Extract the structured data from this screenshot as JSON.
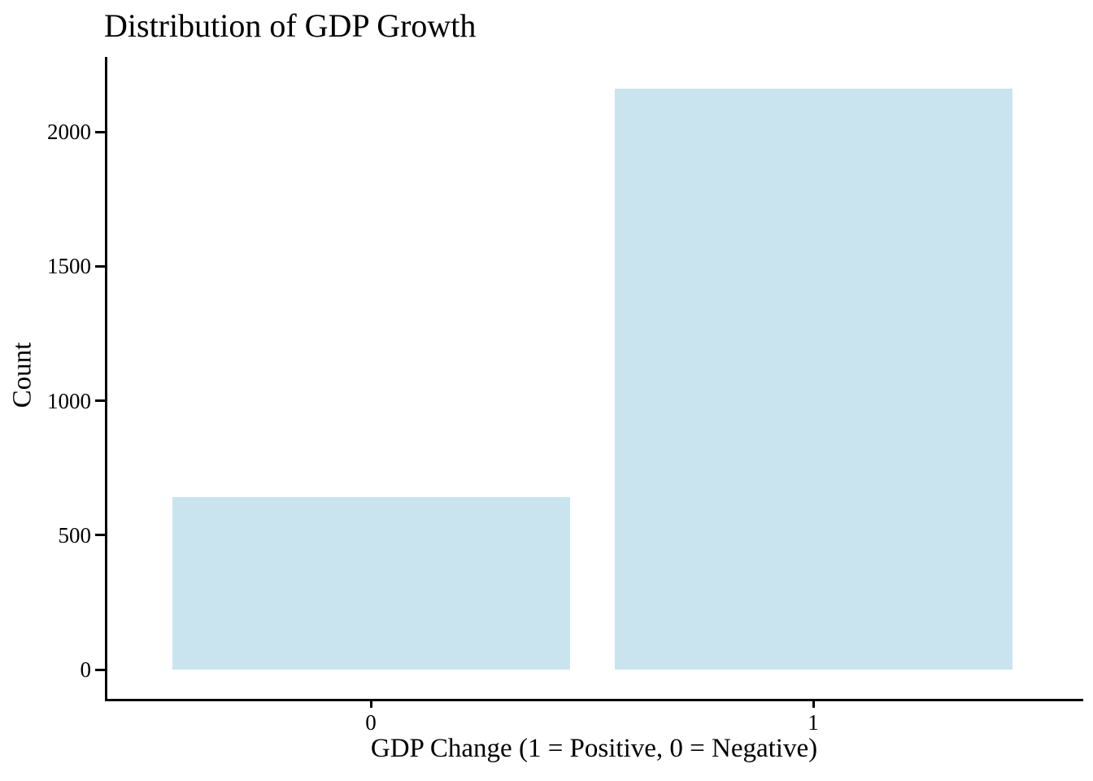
{
  "chart_data": {
    "type": "bar",
    "title": "Distribution of GDP Growth",
    "xlabel": "GDP Change (1 = Positive, 0 = Negative)",
    "ylabel": "Count",
    "categories": [
      "0",
      "1"
    ],
    "values": [
      640,
      2160
    ],
    "yticks": [
      0,
      500,
      1000,
      1500,
      2000
    ],
    "ylim": [
      0,
      2280
    ],
    "grid": false,
    "legend": "none",
    "bar_color": "#c9e4ef",
    "axis_color": "#000000",
    "text_color": "#000000",
    "background": "#ffffff"
  }
}
